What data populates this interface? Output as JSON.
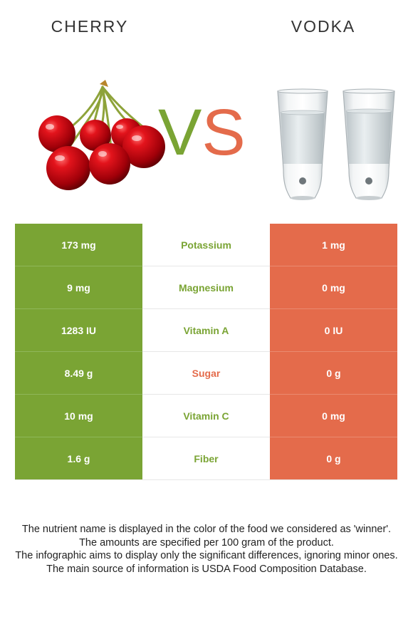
{
  "colors": {
    "winner_left": "#7aa434",
    "winner_right": "#e46b4b"
  },
  "header": {
    "left_food": "CHERRY",
    "right_food": "VODKA",
    "vs_v": "V",
    "vs_s": "S"
  },
  "images": {
    "left": "cherries-image",
    "right": "vodka-shot-glasses-image"
  },
  "rows": [
    {
      "left": "173 mg",
      "nutrient": "Potassium",
      "right": "1 mg",
      "winner": "left"
    },
    {
      "left": "9 mg",
      "nutrient": "Magnesium",
      "right": "0 mg",
      "winner": "left"
    },
    {
      "left": "1283 IU",
      "nutrient": "Vitamin A",
      "right": "0 IU",
      "winner": "left"
    },
    {
      "left": "8.49 g",
      "nutrient": "Sugar",
      "right": "0 g",
      "winner": "right"
    },
    {
      "left": "10 mg",
      "nutrient": "Vitamin C",
      "right": "0 mg",
      "winner": "left"
    },
    {
      "left": "1.6 g",
      "nutrient": "Fiber",
      "right": "0 g",
      "winner": "left"
    }
  ],
  "footnotes": [
    "The nutrient name is displayed in the color of the food we considered as 'winner'.",
    "The amounts are specified per 100 gram of the product.",
    "The infographic aims to display only the significant differences, ignoring minor ones.",
    "The main source of information is USDA Food Composition Database."
  ]
}
